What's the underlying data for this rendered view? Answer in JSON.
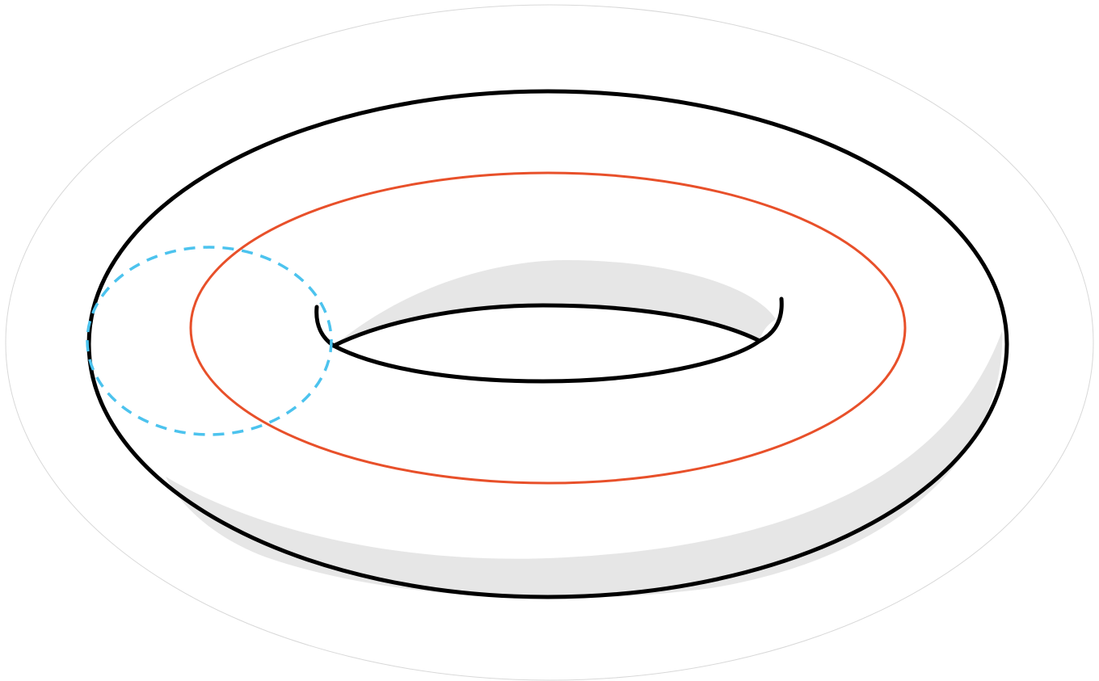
{
  "figure": {
    "subject": "torus",
    "colors": {
      "background": "#ffffff",
      "halo_outline": "#d8d8d8",
      "surface_fill": "#ffffff",
      "shadow_fill": "#e6e6e6",
      "outline_stroke": "#000000",
      "longitude_loop_stroke": "#e8502a",
      "meridian_loop_stroke": "#4cc3ee"
    },
    "curves": {
      "longitude_loop": {
        "style": "solid"
      },
      "meridian_loop": {
        "style": "dashed"
      }
    }
  }
}
